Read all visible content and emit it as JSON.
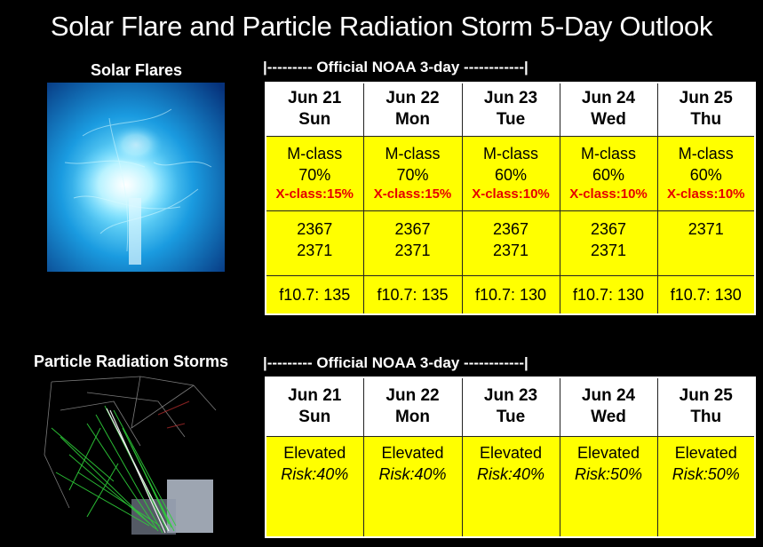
{
  "title": "Solar Flare and Particle Radiation Storm 5-Day Outlook",
  "colors": {
    "cell": "#ffff00",
    "header": "#ffffff",
    "x_class": "#e60000",
    "background": "#000000"
  },
  "flares": {
    "label": "Solar Flares",
    "bracket": "|--------- Official NOAA 3-day ------------|",
    "days": [
      {
        "date": "Jun 21",
        "weekday": "Sun",
        "m_class": "M-class",
        "m_prob": "70%",
        "x_class": "X-class:15%",
        "region1": "2367",
        "region2": "2371",
        "f107": "f10.7: 135"
      },
      {
        "date": "Jun 22",
        "weekday": "Mon",
        "m_class": "M-class",
        "m_prob": "70%",
        "x_class": "X-class:15%",
        "region1": "2367",
        "region2": "2371",
        "f107": "f10.7: 135"
      },
      {
        "date": "Jun 23",
        "weekday": "Tue",
        "m_class": "M-class",
        "m_prob": "60%",
        "x_class": "X-class:10%",
        "region1": "2367",
        "region2": "2371",
        "f107": "f10.7: 130"
      },
      {
        "date": "Jun 24",
        "weekday": "Wed",
        "m_class": "M-class",
        "m_prob": "60%",
        "x_class": "X-class:10%",
        "region1": "2367",
        "region2": "2371",
        "f107": "f10.7: 130"
      },
      {
        "date": "Jun 25",
        "weekday": "Thu",
        "m_class": "M-class",
        "m_prob": "60%",
        "x_class": "X-class:10%",
        "region1": "2371",
        "region2": "",
        "f107": "f10.7: 130"
      }
    ]
  },
  "radiation": {
    "label": "Particle Radiation Storms",
    "bracket": "|--------- Official NOAA 3-day ------------|",
    "days": [
      {
        "date": "Jun 21",
        "weekday": "Sun",
        "level": "Elevated",
        "risk": "Risk:40%"
      },
      {
        "date": "Jun 22",
        "weekday": "Mon",
        "level": "Elevated",
        "risk": "Risk:40%"
      },
      {
        "date": "Jun 23",
        "weekday": "Tue",
        "level": "Elevated",
        "risk": "Risk:40%"
      },
      {
        "date": "Jun 24",
        "weekday": "Wed",
        "level": "Elevated",
        "risk": "Risk:50%"
      },
      {
        "date": "Jun 25",
        "weekday": "Thu",
        "level": "Elevated",
        "risk": "Risk:50%"
      }
    ]
  }
}
